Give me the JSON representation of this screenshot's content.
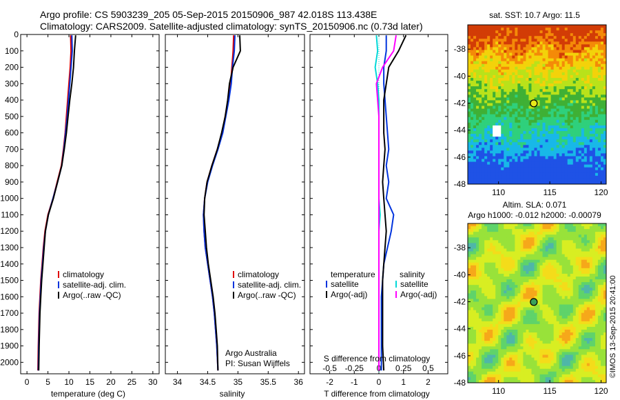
{
  "header": {
    "line1": "Argo profile: CS 5903239_205 05-Sep-2015 20150906_987 42.018S 113.438E",
    "line2": "Climatology: CARS2009. Satellite-adjusted climatology: synTS_20150906.nc (0.73d later)"
  },
  "colors": {
    "climatology": "#e00000",
    "satellite": "#0033dd",
    "argo": "#000000",
    "sal_satellite": "#00d8d8",
    "sal_argo": "#ff00ff"
  },
  "chart_data": [
    {
      "type": "line",
      "xlabel": "temperature (deg C)",
      "xlim": [
        -1.5,
        31.5
      ],
      "xticks": [
        "0",
        "5",
        "10",
        "15",
        "20",
        "25",
        "30"
      ],
      "xtick_values": [
        0,
        5,
        10,
        15,
        20,
        25,
        30
      ],
      "ylim": [
        0,
        2070
      ],
      "yticks": [
        "0",
        "100",
        "200",
        "300",
        "400",
        "500",
        "600",
        "700",
        "800",
        "900",
        "1000",
        "1100",
        "1200",
        "1300",
        "1400",
        "1500",
        "1600",
        "1700",
        "1800",
        "1900",
        "2000"
      ],
      "ytick_values": [
        0,
        100,
        200,
        300,
        400,
        500,
        600,
        700,
        800,
        900,
        1000,
        1100,
        1200,
        1300,
        1400,
        1500,
        1600,
        1700,
        1800,
        1900,
        2000
      ],
      "legend": {
        "position": "lower-right",
        "entries": [
          "climatology",
          "satellite-adj. clim.",
          "Argo(..raw -QC)"
        ]
      },
      "series": [
        {
          "name": "climatology",
          "color": "#e00000",
          "x": [
            10.4,
            10.5,
            10.3,
            10.0,
            9.7,
            9.4,
            9.1,
            8.7,
            8.2,
            7.2,
            6.2,
            5.0,
            4.3,
            3.9,
            3.6,
            3.3,
            3.1,
            2.9,
            2.8,
            2.7,
            2.6
          ],
          "y": [
            5,
            100,
            200,
            300,
            400,
            500,
            600,
            700,
            800,
            900,
            1000,
            1100,
            1200,
            1300,
            1400,
            1500,
            1600,
            1700,
            1800,
            1900,
            2050
          ]
        },
        {
          "name": "satellite-adj. clim.",
          "color": "#0033dd",
          "x": [
            10.7,
            10.8,
            10.5,
            10.2,
            9.9,
            9.6,
            9.2,
            8.8,
            8.3,
            7.3,
            6.2,
            5.1,
            4.4,
            4.0,
            3.7,
            3.4,
            3.2,
            3.0,
            2.9,
            2.8,
            2.7
          ],
          "y": [
            5,
            100,
            200,
            300,
            400,
            500,
            600,
            700,
            800,
            900,
            1000,
            1100,
            1200,
            1300,
            1400,
            1500,
            1600,
            1700,
            1800,
            1900,
            2050
          ]
        },
        {
          "name": "Argo(..raw -QC)",
          "color": "#000000",
          "x": [
            11.6,
            11.3,
            11.1,
            10.7,
            10.2,
            9.8,
            9.4,
            8.9,
            8.3,
            7.3,
            6.3,
            5.1,
            4.4,
            4.1,
            3.8,
            3.5,
            3.3,
            3.1,
            3.0,
            2.9,
            2.8
          ],
          "y": [
            5,
            100,
            200,
            300,
            400,
            500,
            600,
            700,
            800,
            900,
            1000,
            1100,
            1200,
            1300,
            1400,
            1500,
            1600,
            1700,
            1800,
            1900,
            2050
          ]
        }
      ]
    },
    {
      "type": "line",
      "xlabel": "salinity",
      "xlim": [
        33.8,
        36.1
      ],
      "xticks": [
        "34",
        "34.5",
        "35",
        "35.5",
        "36"
      ],
      "xtick_values": [
        34,
        34.5,
        35,
        35.5,
        36
      ],
      "ylim": [
        0,
        2070
      ],
      "legend": {
        "position": "lower-right",
        "entries": [
          "climatology",
          "satellite-adj. clim.",
          "Argo(..raw -QC)"
        ]
      },
      "annotation": [
        "Argo Australia",
        "PI: Susan Wijffels"
      ],
      "series": [
        {
          "name": "climatology",
          "color": "#e00000",
          "x": [
            34.93,
            34.92,
            34.9,
            34.88,
            34.84,
            34.79,
            34.74,
            34.66,
            34.57,
            34.49,
            34.45,
            34.43,
            34.44,
            34.46,
            34.5,
            34.54,
            34.58,
            34.61,
            34.63,
            34.65,
            34.67
          ],
          "y": [
            5,
            100,
            200,
            300,
            400,
            500,
            600,
            700,
            800,
            900,
            1000,
            1100,
            1200,
            1300,
            1400,
            1500,
            1600,
            1700,
            1800,
            1900,
            2050
          ]
        },
        {
          "name": "satellite-adj. clim.",
          "color": "#0033dd",
          "x": [
            34.95,
            34.94,
            34.91,
            34.89,
            34.85,
            34.8,
            34.75,
            34.67,
            34.58,
            34.5,
            34.45,
            34.43,
            34.44,
            34.46,
            34.5,
            34.54,
            34.58,
            34.61,
            34.63,
            34.65,
            34.67
          ],
          "y": [
            5,
            100,
            200,
            300,
            400,
            500,
            600,
            700,
            800,
            900,
            1000,
            1100,
            1200,
            1300,
            1400,
            1500,
            1600,
            1700,
            1800,
            1900,
            2050
          ]
        },
        {
          "name": "Argo(..raw -QC)",
          "color": "#000000",
          "x": [
            35.03,
            35.04,
            34.92,
            34.86,
            34.83,
            34.79,
            34.73,
            34.66,
            34.57,
            34.49,
            34.45,
            34.44,
            34.46,
            34.48,
            34.51,
            34.55,
            34.59,
            34.62,
            34.64,
            34.66,
            34.67
          ],
          "y": [
            5,
            100,
            200,
            300,
            400,
            500,
            600,
            700,
            800,
            900,
            1000,
            1100,
            1200,
            1300,
            1400,
            1500,
            1600,
            1700,
            1800,
            1900,
            2050
          ]
        }
      ]
    },
    {
      "type": "line",
      "xlabel": "T difference from climatology",
      "xlabel_top": "S difference from climatology",
      "xlim": [
        -2.8,
        2.8
      ],
      "xticks": [
        "-2",
        "-1",
        "0",
        "1",
        "2"
      ],
      "xtick_values": [
        -2,
        -1,
        0,
        1,
        2
      ],
      "sticks": [
        "-0.5",
        "-0.25",
        "0",
        "0.25",
        "0.5"
      ],
      "stick_values": [
        -2,
        -1,
        0,
        1,
        2
      ],
      "ylim": [
        0,
        2070
      ],
      "legend": {
        "position": "lower-center",
        "temperature_title": "temperature",
        "salinity_title": "salinity",
        "entries": [
          "satellite",
          "Argo(-adj)",
          "satellite",
          "Argo(-adj)"
        ]
      },
      "series": [
        {
          "name": "satellite",
          "color": "#0033dd",
          "x": [
            0.3,
            0.3,
            0.2,
            0.2,
            0.25,
            0.3,
            0.35,
            0.4,
            0.3,
            0.4,
            0.3,
            0.6,
            0.5,
            0.35,
            0.2,
            0.15,
            0.1,
            0.1,
            0.1,
            0.1,
            0.1
          ],
          "y": [
            5,
            100,
            200,
            300,
            400,
            500,
            600,
            700,
            800,
            900,
            1000,
            1100,
            1200,
            1300,
            1400,
            1500,
            1600,
            1700,
            1800,
            1900,
            2050
          ]
        },
        {
          "name": "Argo(-adj)",
          "color": "#000000",
          "x": [
            1.1,
            0.8,
            0.4,
            0.3,
            0.2,
            0.2,
            0.2,
            0.25,
            0.2,
            0.15,
            0.2,
            0.25,
            0.3,
            0.25,
            0.2,
            0.15,
            0.15,
            0.15,
            0.15,
            0.15,
            0.2
          ],
          "y": [
            5,
            100,
            200,
            300,
            400,
            500,
            600,
            700,
            800,
            900,
            1000,
            1100,
            1200,
            1300,
            1400,
            1500,
            1600,
            1700,
            1800,
            1900,
            2050
          ]
        },
        {
          "name": "satellite",
          "color": "#00d8d8",
          "x": [
            -0.1,
            -0.05,
            -0.15,
            -0.05,
            0.0,
            0.0,
            0.0,
            0.0,
            0.0,
            0.0,
            0.0,
            0.05,
            0.0,
            0.0,
            0.0,
            0.0,
            0.0,
            0.0,
            0.0,
            0.0,
            0.0
          ],
          "y": [
            5,
            100,
            200,
            300,
            400,
            500,
            600,
            700,
            800,
            900,
            1000,
            1100,
            1200,
            1300,
            1400,
            1500,
            1600,
            1700,
            1800,
            1900,
            2050
          ]
        },
        {
          "name": "Argo(-adj)",
          "color": "#ff00ff",
          "x": [
            0.7,
            0.6,
            0.15,
            -0.1,
            -0.05,
            0.0,
            0.0,
            0.0,
            0.0,
            0.0,
            0.0,
            0.0,
            0.0,
            0.0,
            0.0,
            0.0,
            0.0,
            0.0,
            0.0,
            0.0,
            0.0
          ],
          "y": [
            5,
            100,
            200,
            300,
            400,
            500,
            600,
            700,
            800,
            900,
            1000,
            1100,
            1200,
            1300,
            1400,
            1500,
            1600,
            1700,
            1800,
            1900,
            2050
          ]
        }
      ]
    },
    {
      "type": "heatmap",
      "title": "sat. SST: 10.7  Argo: 11.5",
      "xlim": [
        107,
        120.5
      ],
      "ylim": [
        -48,
        -36.2
      ],
      "xticks": [
        "110",
        "115",
        "120"
      ],
      "xtick_values": [
        110,
        115,
        120
      ],
      "yticks": [
        "-38",
        "-40",
        "-42",
        "-44",
        "-46",
        "-48"
      ],
      "ytick_values": [
        -38,
        -40,
        -42,
        -44,
        -46,
        -48
      ],
      "marker": {
        "lon": 113.438,
        "lat": -42.018
      }
    },
    {
      "type": "heatmap",
      "title": "Altim. SLA: 0.071",
      "subtitle": "Argo h1000: -0.012 h2000: -0.00079",
      "xlim": [
        107,
        120.5
      ],
      "ylim": [
        -48,
        -36.2
      ],
      "xticks": [
        "110",
        "115",
        "120"
      ],
      "xtick_values": [
        110,
        115,
        120
      ],
      "yticks": [
        "-38",
        "-40",
        "-42",
        "-44",
        "-46",
        "-48"
      ],
      "ytick_values": [
        -38,
        -40,
        -42,
        -44,
        -46,
        -48
      ],
      "marker": {
        "lon": 113.438,
        "lat": -42.018
      }
    }
  ],
  "credit": "©IMOS 13-Sep-2015 20:41:00"
}
